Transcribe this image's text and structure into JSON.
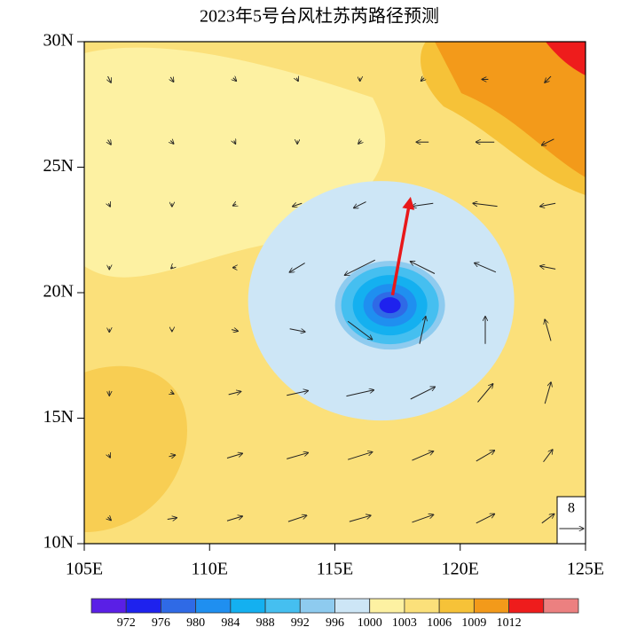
{
  "chart_data": {
    "type": "wind-map",
    "title": "2023年5号台风杜苏芮路径预测",
    "xlim": [
      105,
      125
    ],
    "ylim": [
      10,
      30
    ],
    "xticks": [
      {
        "value": 105,
        "label": "105E"
      },
      {
        "value": 110,
        "label": "110E"
      },
      {
        "value": 115,
        "label": "115E"
      },
      {
        "value": 120,
        "label": "120E"
      },
      {
        "value": 125,
        "label": "125E"
      }
    ],
    "yticks": [
      {
        "value": 10,
        "label": "10N"
      },
      {
        "value": 15,
        "label": "15N"
      },
      {
        "value": 20,
        "label": "20N"
      },
      {
        "value": 25,
        "label": "25N"
      },
      {
        "value": 30,
        "label": "30N"
      }
    ],
    "track": {
      "lon": [
        117.3,
        118.0
      ],
      "lat": [
        19.9,
        23.7
      ],
      "color": "#e8181a"
    },
    "reference_vector": 8,
    "wind": {
      "lon": [
        106,
        108.5,
        111,
        113.5,
        116,
        118.5,
        121,
        123.5
      ],
      "lat": [
        11,
        13.5,
        16,
        18.5,
        21,
        23.5,
        26,
        28.5
      ],
      "u": [
        [
          1,
          3,
          5,
          6,
          7,
          7,
          6,
          4
        ],
        [
          0.5,
          2,
          5,
          7,
          8,
          7,
          6,
          3
        ],
        [
          0,
          1,
          4,
          7,
          9,
          8,
          5,
          2
        ],
        [
          0,
          0,
          2,
          5,
          8,
          2,
          0,
          -2
        ],
        [
          0,
          -0.5,
          -1,
          -5,
          -10,
          -8,
          -7,
          -5
        ],
        [
          0.5,
          0,
          -1,
          -3,
          -4,
          -7,
          -8,
          -5
        ],
        [
          1,
          1,
          0.5,
          0,
          -1,
          -4,
          -6,
          -4
        ],
        [
          1,
          1,
          1,
          0.5,
          0,
          -1,
          -2,
          -2
        ]
      ],
      "v": [
        [
          -1,
          0.5,
          1.5,
          2,
          2,
          2.5,
          3,
          3
        ],
        [
          -1,
          0.5,
          1.5,
          2,
          2.5,
          3,
          3.5,
          4
        ],
        [
          -1.5,
          -0.5,
          1,
          1.5,
          2,
          4,
          6,
          7
        ],
        [
          -1,
          -0.5,
          -0.5,
          -1,
          -6,
          9,
          9,
          7
        ],
        [
          -1,
          -0.5,
          0,
          -3,
          -5,
          4,
          3,
          1
        ],
        [
          -1,
          -1,
          -0.5,
          -1,
          -2,
          -1,
          1,
          -1
        ],
        [
          -1.5,
          -1,
          -1,
          -1,
          -1,
          0,
          0,
          -2
        ],
        [
          -2,
          -1.5,
          -1,
          -1,
          -1,
          -1,
          0,
          -2
        ]
      ]
    },
    "colorbar": {
      "levels": [
        972,
        976,
        980,
        984,
        988,
        992,
        996,
        1000,
        1003,
        1006,
        1009,
        1012
      ],
      "colors": [
        "#5a1fe6",
        "#1e22ee",
        "#2f6ae6",
        "#1f8ff0",
        "#14b0f0",
        "#45bff0",
        "#8ecbef",
        "#cde6f6",
        "#fdf1a2",
        "#fbe07a",
        "#f6c238",
        "#f39a1a",
        "#ee1c1c",
        "#ec8080"
      ]
    }
  }
}
